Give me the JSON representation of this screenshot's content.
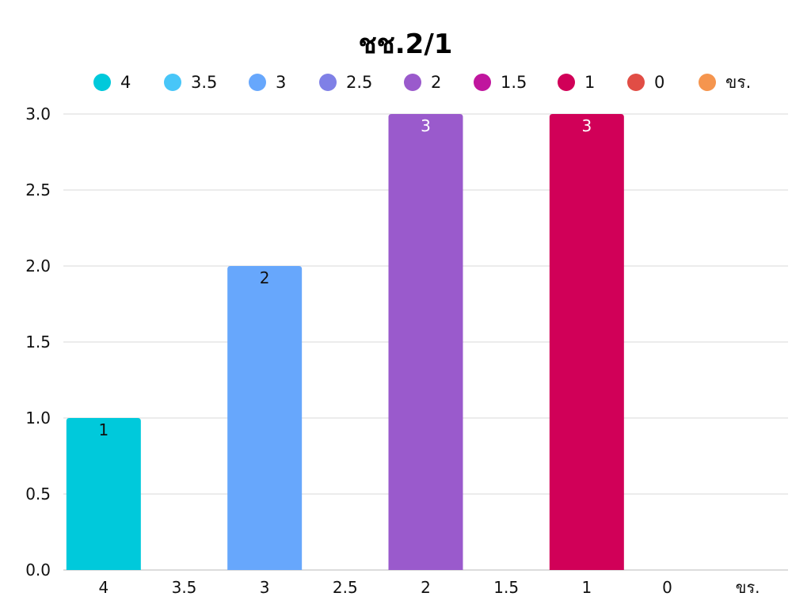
{
  "chart_data": {
    "type": "bar",
    "title": "ชช.2/1",
    "xlabel": "",
    "ylabel": "",
    "categories": [
      "4",
      "3.5",
      "3",
      "2.5",
      "2",
      "1.5",
      "1",
      "0",
      "ขร."
    ],
    "values": [
      1,
      0,
      2,
      0,
      3,
      0,
      3,
      0,
      0
    ],
    "colors": [
      "#00C9DB",
      "#48C6F8",
      "#67A7FC",
      "#7F80E6",
      "#9A5ACC",
      "#C0169E",
      "#D10058",
      "#E14D45",
      "#F5954E"
    ],
    "data_labels": [
      "1",
      "",
      "2",
      "",
      "3",
      "",
      "3",
      "",
      ""
    ],
    "data_label_colors": [
      "#111111",
      "",
      "#111111",
      "",
      "#ffffff",
      "",
      "#ffffff",
      "",
      ""
    ],
    "ylim": [
      0,
      3
    ],
    "yticks": [
      "0.0",
      "0.5",
      "1.0",
      "1.5",
      "2.0",
      "2.5",
      "3.0"
    ],
    "grid": true,
    "legend_position": "top"
  }
}
